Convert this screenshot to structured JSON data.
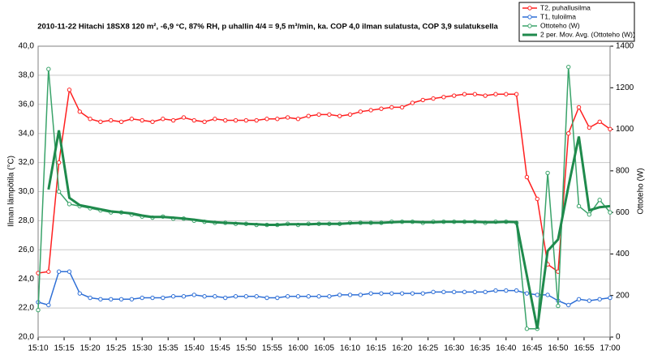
{
  "chart_data": {
    "type": "line",
    "title": "2010-11-22 Hitachi 18SX8 120 m², -6,9 °C, 87% RH, p uhallin 4/4 = 9,5 m³/min, ka. COP 4,0 ilman sulatusta, COP 3,9 sulatuksella",
    "y_label": "Ilman lämpötila (°C)",
    "y2_label": "Ottoteho (W)",
    "x": [
      "15:10",
      "15:12",
      "15:14",
      "15:16",
      "15:18",
      "15:20",
      "15:22",
      "15:24",
      "15:26",
      "15:28",
      "15:30",
      "15:32",
      "15:34",
      "15:36",
      "15:38",
      "15:40",
      "15:42",
      "15:44",
      "15:46",
      "15:48",
      "15:50",
      "15:52",
      "15:54",
      "15:56",
      "15:58",
      "16:00",
      "16:02",
      "16:04",
      "16:06",
      "16:08",
      "16:10",
      "16:12",
      "16:14",
      "16:16",
      "16:18",
      "16:20",
      "16:22",
      "16:24",
      "16:26",
      "16:28",
      "16:30",
      "16:32",
      "16:34",
      "16:36",
      "16:38",
      "16:40",
      "16:42",
      "16:44",
      "16:46",
      "16:48",
      "16:50",
      "16:52",
      "16:54",
      "16:56",
      "16:58",
      "17:00"
    ],
    "xlim": [
      "15:10",
      "17:00"
    ],
    "xticks": [
      "15:10",
      "15:15",
      "15:20",
      "15:25",
      "15:30",
      "15:35",
      "15:40",
      "15:45",
      "15:50",
      "15:55",
      "16:00",
      "16:05",
      "16:10",
      "16:15",
      "16:20",
      "16:25",
      "16:30",
      "16:35",
      "16:40",
      "16:45",
      "16:50",
      "16:55",
      "17:00"
    ],
    "ylim": [
      20,
      40
    ],
    "yticks": [
      {
        "value": 20,
        "label": "20,0"
      },
      {
        "value": 22,
        "label": "22,0"
      },
      {
        "value": 24,
        "label": "24,0"
      },
      {
        "value": 26,
        "label": "26,0"
      },
      {
        "value": 28,
        "label": "28,0"
      },
      {
        "value": 30,
        "label": "30,0"
      },
      {
        "value": 32,
        "label": "32,0"
      },
      {
        "value": 34,
        "label": "34,0"
      },
      {
        "value": 36,
        "label": "36,0"
      },
      {
        "value": 38,
        "label": "38,0"
      },
      {
        "value": 40,
        "label": "40,0"
      }
    ],
    "y2lim": [
      0,
      1400
    ],
    "y2ticks": [
      0,
      200,
      400,
      600,
      800,
      1000,
      1200,
      1400
    ],
    "grid": true,
    "legend": "top-right",
    "series": [
      {
        "name": "T2, puhallusilma",
        "color": "#ff2020",
        "markers": true,
        "values": [
          24.4,
          24.5,
          32.0,
          37.0,
          35.5,
          35.0,
          34.8,
          34.9,
          34.8,
          35.0,
          34.9,
          34.8,
          35.0,
          34.9,
          35.1,
          34.9,
          34.8,
          35.0,
          34.9,
          34.9,
          34.9,
          34.9,
          35.0,
          35.0,
          35.1,
          35.0,
          35.2,
          35.3,
          35.3,
          35.2,
          35.3,
          35.5,
          35.6,
          35.7,
          35.8,
          35.8,
          36.1,
          36.3,
          36.4,
          36.5,
          36.6,
          36.7,
          36.7,
          36.6,
          36.7,
          36.7,
          36.7,
          31.0,
          29.5,
          25.0,
          24.5,
          34.0,
          35.8,
          34.4,
          34.8,
          34.3
        ]
      },
      {
        "name": "T1, tuloilma",
        "color": "#2e6fd6",
        "markers": true,
        "values": [
          22.4,
          22.2,
          24.5,
          24.5,
          23.0,
          22.7,
          22.6,
          22.6,
          22.6,
          22.6,
          22.7,
          22.7,
          22.7,
          22.8,
          22.8,
          22.9,
          22.8,
          22.8,
          22.7,
          22.8,
          22.8,
          22.8,
          22.7,
          22.7,
          22.8,
          22.8,
          22.8,
          22.8,
          22.8,
          22.9,
          22.9,
          22.9,
          23.0,
          23.0,
          23.0,
          23.0,
          23.0,
          23.0,
          23.1,
          23.1,
          23.1,
          23.1,
          23.1,
          23.1,
          23.2,
          23.2,
          23.2,
          23.0,
          22.9,
          22.9,
          22.5,
          22.2,
          22.6,
          22.5,
          22.6,
          22.7
        ]
      },
      {
        "name": "Ottoteho (W)",
        "color": "#3aa36a",
        "markers": true,
        "axis": "y2",
        "values": [
          130,
          1290,
          700,
          640,
          630,
          620,
          610,
          600,
          600,
          590,
          580,
          575,
          580,
          570,
          570,
          560,
          555,
          550,
          550,
          545,
          545,
          540,
          540,
          540,
          545,
          540,
          545,
          545,
          545,
          545,
          550,
          550,
          550,
          550,
          555,
          555,
          555,
          550,
          555,
          555,
          555,
          555,
          555,
          550,
          555,
          555,
          550,
          40,
          40,
          790,
          150,
          1300,
          630,
          590,
          660,
          600
        ]
      },
      {
        "name": "2 per. Mov. Avg. (Ottoteho (W))",
        "color": "#1f8a4c",
        "markers": false,
        "width": 3,
        "axis": "y2",
        "values": [
          null,
          710,
          995,
          670,
          635,
          625,
          615,
          605,
          600,
          595,
          585,
          578,
          578,
          575,
          570,
          565,
          558,
          553,
          550,
          548,
          545,
          543,
          540,
          540,
          543,
          543,
          543,
          545,
          545,
          545,
          548,
          550,
          550,
          550,
          553,
          555,
          555,
          553,
          553,
          555,
          555,
          555,
          555,
          553,
          553,
          555,
          553,
          295,
          40,
          415,
          470,
          725,
          965,
          610,
          625,
          630
        ]
      }
    ]
  }
}
